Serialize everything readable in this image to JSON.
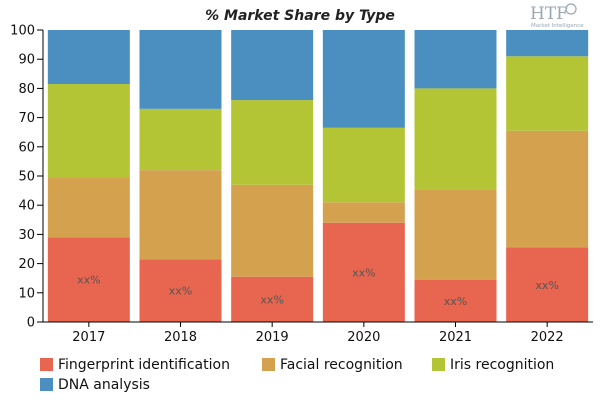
{
  "chart_data": {
    "type": "bar",
    "stacked": true,
    "title": "% Market Share by Type",
    "categories": [
      "2017",
      "2018",
      "2019",
      "2020",
      "2021",
      "2022"
    ],
    "ylim": [
      0,
      100
    ],
    "yticks": [
      0,
      10,
      20,
      30,
      40,
      50,
      60,
      70,
      80,
      90,
      100
    ],
    "series": [
      {
        "name": "Fingerprint identification",
        "color": "#e8664f",
        "values": [
          29,
          21.5,
          15.5,
          34,
          14.5,
          25.5
        ]
      },
      {
        "name": "Facial recognition",
        "color": "#d4a14f",
        "values": [
          20.5,
          30.5,
          31.5,
          7,
          31,
          40
        ]
      },
      {
        "name": "Iris recognition",
        "color": "#b3c435",
        "values": [
          32,
          21,
          29,
          25.5,
          34.5,
          25.5
        ]
      },
      {
        "name": "DNA analysis",
        "color": "#4a8fbf",
        "values": [
          18.5,
          27,
          24,
          33.5,
          20,
          9
        ]
      }
    ],
    "data_labels": [
      "xx%",
      "xx%",
      "xx%",
      "xx%",
      "xx%",
      "xx%"
    ],
    "legend_position": "bottom",
    "grid": false
  },
  "logo": {
    "main": "HTF",
    "sub": "Market Intelligence"
  }
}
